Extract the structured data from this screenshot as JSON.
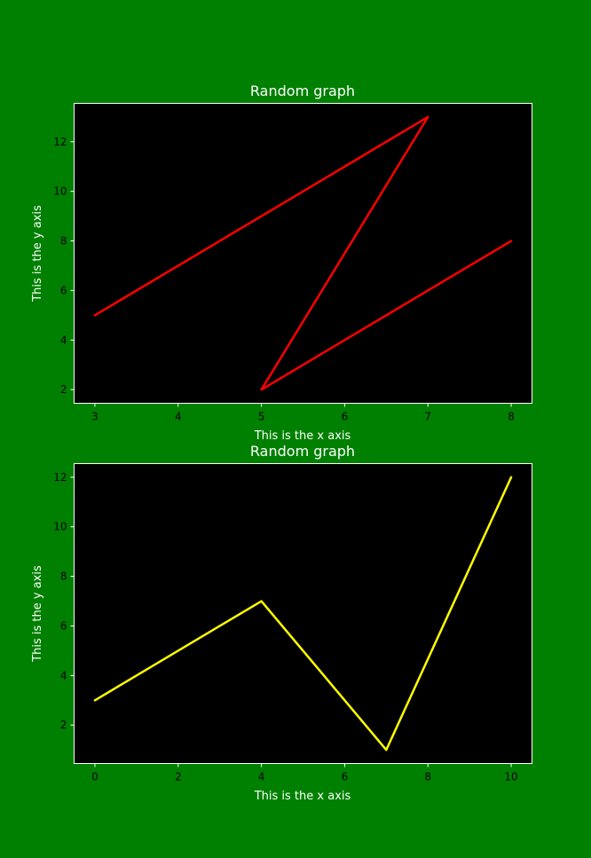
{
  "colors": {
    "figure_background": "#008000",
    "plot_background": "#000000",
    "spine": "#ffffff",
    "tick_label": "#000000",
    "text": "#ffffff"
  },
  "chart_data": [
    {
      "type": "line",
      "title": "Random graph",
      "xlabel": "This is the x axis",
      "ylabel": "This is the y axis",
      "xlim": [
        2.75,
        8.25
      ],
      "ylim": [
        1.45,
        13.55
      ],
      "xticks": [
        3,
        4,
        5,
        6,
        7,
        8
      ],
      "yticks": [
        2,
        4,
        6,
        8,
        10,
        12
      ],
      "grid": false,
      "series": [
        {
          "color": "#ff0000",
          "x": [
            3,
            7,
            5,
            8
          ],
          "y": [
            5,
            13,
            2,
            8
          ]
        }
      ]
    },
    {
      "type": "line",
      "title": "Random graph",
      "xlabel": "This is the x axis",
      "ylabel": "This is the y axis",
      "xlim": [
        -0.5,
        10.5
      ],
      "ylim": [
        0.45,
        12.55
      ],
      "xticks": [
        0,
        2,
        4,
        6,
        8,
        10
      ],
      "yticks": [
        2,
        4,
        6,
        8,
        10,
        12
      ],
      "grid": false,
      "series": [
        {
          "color": "#ffff00",
          "x": [
            0,
            4,
            7,
            10
          ],
          "y": [
            3,
            7,
            1,
            12
          ]
        }
      ]
    }
  ]
}
